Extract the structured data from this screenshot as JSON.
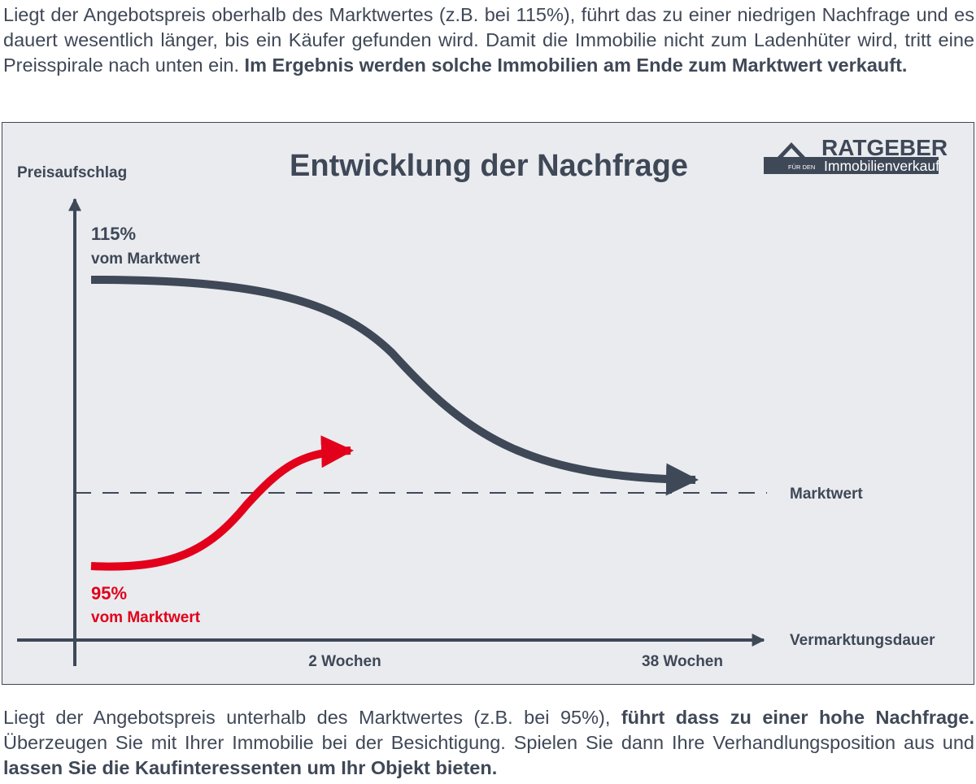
{
  "intro": {
    "text": "Liegt der Angebotspreis oberhalb des Marktwertes (z.B. bei 115%), führt das zu einer niedrigen Nachfrage und es dauert wesentlich länger, bis ein Käufer gefunden wird. Damit die Immobilie nicht zum Ladenhüter wird, tritt eine Preisspirale nach unten ein. ",
    "bold": "Im Ergebnis werden solche Immobilien am Ende zum Marktwert verkauft."
  },
  "figure": {
    "title": "Entwicklung der Nachfrage",
    "y_axis_label": "Preisaufschlag",
    "x_axis_label": "Vermarktungsdauer",
    "baseline_label": "Marktwert",
    "high_value": "115%",
    "high_caption": "vom Marktwert",
    "low_value": "95%",
    "low_caption": "vom Marktwert",
    "tick_short": "2 Wochen",
    "tick_long": "38 Wochen",
    "logo": {
      "brand": "RATGEBER",
      "small": "FÜR DEN",
      "sub": "Immobilienverkauf"
    },
    "colors": {
      "ink": "#3f4857",
      "accent": "#e2001a",
      "background": "#e9ebef"
    }
  },
  "outro": {
    "text1": "Liegt der Angebotspreis unterhalb des Marktwertes (z.B. bei 95%), ",
    "bold1": "führt dass zu einer hohe Nachfrage.",
    "text2": " Überzeugen Sie mit Ihrer Immobilie bei der Besichtigung. Spielen Sie dann Ihre Verhandlungsposition aus  und ",
    "bold2": "lassen Sie die Kaufinteressenten um Ihr Objekt bieten."
  }
}
